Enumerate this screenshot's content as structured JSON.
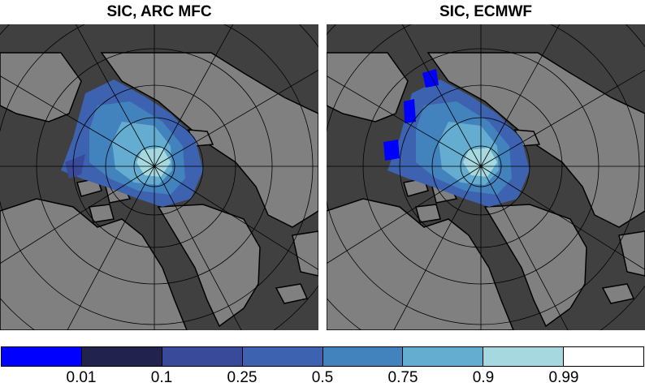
{
  "titles": {
    "left": "SIC, ARC MFC",
    "right": "SIC, ECMWF"
  },
  "colors": {
    "ocean": "#404040",
    "land": "#808080",
    "graticule": "#000000"
  },
  "colorbar": {
    "ticks": [
      "0.01",
      "0.1",
      "0.25",
      "0.5",
      "0.75",
      "0.9",
      "0.99"
    ],
    "colors": [
      "#0000ff",
      "#22224f",
      "#3a4a9b",
      "#3d62b0",
      "#4282bd",
      "#65add0",
      "#a6d9df",
      "#ffffff"
    ]
  }
}
